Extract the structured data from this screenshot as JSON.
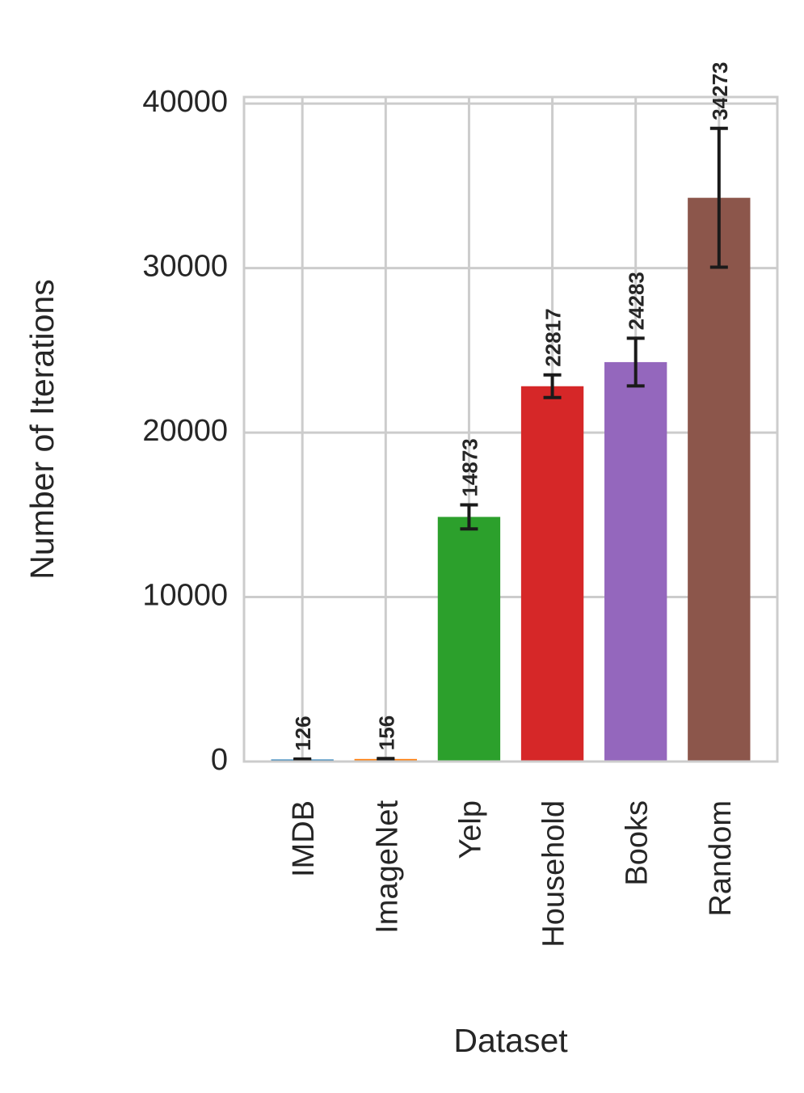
{
  "chart_data": {
    "type": "bar",
    "xlabel": "Dataset",
    "ylabel": "Number of Iterations",
    "categories": [
      "IMDB",
      "ImageNet",
      "Yelp",
      "Household",
      "Books",
      "Random"
    ],
    "values": [
      126,
      156,
      14873,
      22817,
      24283,
      34273
    ],
    "errors": [
      30,
      30,
      730,
      690,
      1450,
      4220
    ],
    "colors": [
      "#1f77b4",
      "#ff7f0e",
      "#2ca02c",
      "#d62728",
      "#9467bd",
      "#8c564b"
    ],
    "ylim": [
      0,
      40400
    ],
    "yticks": [
      0,
      10000,
      20000,
      30000,
      40000
    ],
    "grid": true
  }
}
